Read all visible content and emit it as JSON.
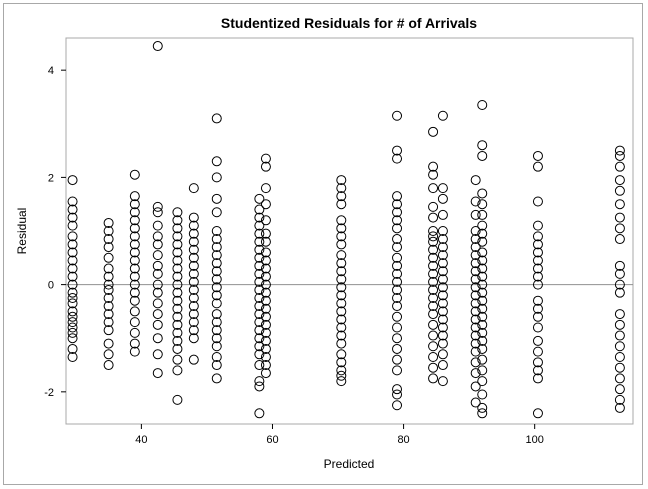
{
  "chart_data": {
    "type": "scatter",
    "title": "Studentized Residuals for # of Arrivals",
    "xlabel": "Predicted",
    "ylabel": "Residual",
    "xlim": [
      28.5,
      115
    ],
    "ylim": [
      -2.6,
      4.6
    ],
    "xticks": [
      40,
      60,
      80,
      100
    ],
    "yticks": [
      -2,
      0,
      2,
      4
    ],
    "reference_line_y": 0,
    "grid": false,
    "legend": "none",
    "clusters": [
      {
        "x": 29.5,
        "y": [
          1.95,
          1.55,
          1.4,
          1.25,
          1.1,
          0.9,
          0.75,
          0.6,
          0.45,
          0.3,
          0.15,
          0.0,
          -0.15,
          -0.25,
          -0.35,
          -0.5,
          -0.6,
          -0.7,
          -0.8,
          -0.9,
          -1.0,
          -1.2,
          -1.35
        ]
      },
      {
        "x": 35.0,
        "y": [
          1.15,
          1.0,
          0.85,
          0.7,
          0.5,
          0.3,
          0.15,
          0.0,
          -0.1,
          -0.25,
          -0.4,
          -0.55,
          -0.7,
          -0.85,
          -1.1,
          -1.3,
          -1.5
        ]
      },
      {
        "x": 39.0,
        "y": [
          2.05,
          1.65,
          1.5,
          1.35,
          1.2,
          1.05,
          0.9,
          0.75,
          0.6,
          0.45,
          0.3,
          0.15,
          0.0,
          -0.15,
          -0.3,
          -0.5,
          -0.7,
          -0.9,
          -1.1,
          -1.25
        ]
      },
      {
        "x": 42.5,
        "y": [
          4.45,
          1.45,
          1.35,
          1.1,
          0.9,
          0.75,
          0.55,
          0.35,
          0.2,
          0.0,
          -0.15,
          -0.35,
          -0.55,
          -0.75,
          -1.0,
          -1.3,
          -1.65
        ]
      },
      {
        "x": 45.5,
        "y": [
          1.35,
          1.2,
          1.05,
          0.9,
          0.75,
          0.6,
          0.45,
          0.3,
          0.15,
          0.0,
          -0.15,
          -0.3,
          -0.45,
          -0.6,
          -0.75,
          -0.9,
          -1.05,
          -1.2,
          -1.4,
          -1.6,
          -2.15
        ]
      },
      {
        "x": 48.0,
        "y": [
          1.8,
          1.25,
          1.1,
          0.95,
          0.8,
          0.65,
          0.5,
          0.35,
          0.2,
          0.05,
          -0.1,
          -0.25,
          -0.4,
          -0.55,
          -0.7,
          -0.85,
          -1.0,
          -1.4
        ]
      },
      {
        "x": 51.5,
        "y": [
          3.1,
          2.3,
          2.0,
          1.6,
          1.35,
          1.0,
          0.85,
          0.7,
          0.55,
          0.4,
          0.25,
          0.1,
          -0.05,
          -0.2,
          -0.35,
          -0.55,
          -0.7,
          -0.85,
          -1.0,
          -1.15,
          -1.35,
          -1.5,
          -1.75
        ]
      },
      {
        "x": 58.0,
        "y": [
          1.6,
          1.4,
          1.25,
          1.1,
          0.95,
          0.8,
          0.65,
          0.5,
          0.35,
          0.2,
          0.05,
          -0.1,
          -0.25,
          -0.4,
          -0.55,
          -0.7,
          -0.85,
          -1.0,
          -1.15,
          -1.3,
          -1.5,
          -1.8,
          -1.9,
          -2.4
        ]
      },
      {
        "x": 59.0,
        "y": [
          2.35,
          2.2,
          1.8,
          1.5,
          1.2,
          0.95,
          0.8,
          0.6,
          0.45,
          0.3,
          0.15,
          0.0,
          -0.15,
          -0.3,
          -0.45,
          -0.6,
          -0.75,
          -0.9,
          -1.05,
          -1.2,
          -1.35,
          -1.5,
          -1.65
        ]
      },
      {
        "x": 70.5,
        "y": [
          1.95,
          1.8,
          1.65,
          1.5,
          1.2,
          1.05,
          0.9,
          0.75,
          0.55,
          0.4,
          0.25,
          0.1,
          -0.05,
          -0.2,
          -0.35,
          -0.5,
          -0.65,
          -0.8,
          -0.95,
          -1.1,
          -1.3,
          -1.45,
          -1.6,
          -1.7,
          -1.8
        ]
      },
      {
        "x": 79.0,
        "y": [
          3.15,
          2.5,
          2.35,
          1.65,
          1.5,
          1.35,
          1.2,
          1.05,
          0.85,
          0.7,
          0.5,
          0.35,
          0.2,
          0.05,
          -0.1,
          -0.25,
          -0.4,
          -0.6,
          -0.8,
          -1.0,
          -1.2,
          -1.4,
          -1.6,
          -1.95,
          -2.05,
          -2.25
        ]
      },
      {
        "x": 84.5,
        "y": [
          2.85,
          2.2,
          2.05,
          1.8,
          1.45,
          1.25,
          1.0,
          0.9,
          0.8,
          0.65,
          0.5,
          0.35,
          0.2,
          0.05,
          -0.1,
          -0.25,
          -0.4,
          -0.55,
          -0.75,
          -0.95,
          -1.15,
          -1.35,
          -1.55,
          -1.75
        ]
      },
      {
        "x": 86.0,
        "y": [
          3.15,
          1.8,
          1.6,
          1.3,
          1.0,
          0.85,
          0.7,
          0.55,
          0.4,
          0.25,
          0.1,
          -0.05,
          -0.2,
          -0.35,
          -0.5,
          -0.65,
          -0.8,
          -0.95,
          -1.1,
          -1.3,
          -1.5,
          -1.8
        ]
      },
      {
        "x": 91.0,
        "y": [
          1.95,
          1.55,
          1.3,
          1.0,
          0.85,
          0.7,
          0.55,
          0.4,
          0.25,
          0.1,
          -0.05,
          -0.2,
          -0.35,
          -0.5,
          -0.65,
          -0.8,
          -0.95,
          -1.1,
          -1.25,
          -1.45,
          -1.65,
          -1.9,
          -2.2
        ]
      },
      {
        "x": 92.0,
        "y": [
          3.35,
          2.6,
          2.4,
          1.7,
          1.5,
          1.3,
          1.1,
          0.95,
          0.8,
          0.6,
          0.45,
          0.3,
          0.15,
          0.0,
          -0.15,
          -0.3,
          -0.45,
          -0.6,
          -0.75,
          -0.9,
          -1.05,
          -1.2,
          -1.4,
          -1.6,
          -1.8,
          -2.05,
          -2.3,
          -2.4
        ]
      },
      {
        "x": 100.5,
        "y": [
          2.4,
          2.2,
          1.55,
          1.1,
          0.9,
          0.75,
          0.6,
          0.45,
          0.3,
          0.15,
          0.0,
          -0.3,
          -0.45,
          -0.6,
          -0.8,
          -1.05,
          -1.25,
          -1.45,
          -1.6,
          -1.75,
          -2.4
        ]
      },
      {
        "x": 113.0,
        "y": [
          2.5,
          2.4,
          2.2,
          1.95,
          1.75,
          1.5,
          1.25,
          1.05,
          0.85,
          0.35,
          0.2,
          0.0,
          -0.15,
          -0.55,
          -0.75,
          -0.95,
          -1.15,
          -1.35,
          -1.55,
          -1.75,
          -1.95,
          -2.15,
          -2.3
        ]
      }
    ]
  }
}
